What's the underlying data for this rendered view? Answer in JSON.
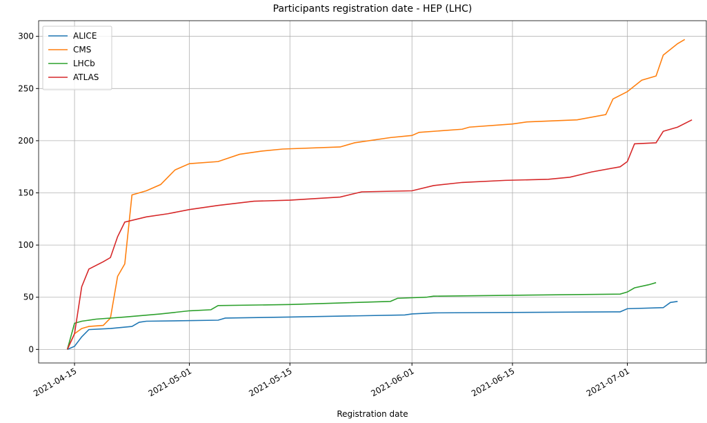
{
  "chart_data": {
    "type": "line",
    "title": "Participants registration date - HEP (LHC)",
    "x_label": "Registration date",
    "xlim": [
      "2021-04-10",
      "2021-07-12"
    ],
    "ylim": [
      -13,
      315
    ],
    "xticks": [
      "2021-04-15",
      "2021-05-01",
      "2021-05-15",
      "2021-06-01",
      "2021-06-15",
      "2021-07-01"
    ],
    "yticks": [
      0,
      50,
      100,
      150,
      200,
      250,
      300
    ],
    "grid": true,
    "legend": "upper left",
    "series": [
      {
        "name": "ALICE",
        "color": "#1f77b4",
        "x": [
          "2021-04-14",
          "2021-04-15",
          "2021-04-16",
          "2021-04-17",
          "2021-04-20",
          "2021-04-23",
          "2021-04-24",
          "2021-04-25",
          "2021-05-05",
          "2021-05-06",
          "2021-05-15",
          "2021-05-31",
          "2021-06-01",
          "2021-06-04",
          "2021-06-30",
          "2021-07-01",
          "2021-07-06",
          "2021-07-07",
          "2021-07-08"
        ],
        "values": [
          0,
          3,
          12,
          19,
          20,
          22,
          26,
          27,
          28,
          30,
          31,
          33,
          34,
          35,
          36,
          39,
          40,
          45,
          46
        ]
      },
      {
        "name": "CMS",
        "color": "#ff7f0e",
        "x": [
          "2021-04-14",
          "2021-04-15",
          "2021-04-16",
          "2021-04-17",
          "2021-04-19",
          "2021-04-20",
          "2021-04-21",
          "2021-04-22",
          "2021-04-23",
          "2021-04-25",
          "2021-04-27",
          "2021-04-29",
          "2021-05-01",
          "2021-05-05",
          "2021-05-08",
          "2021-05-11",
          "2021-05-14",
          "2021-05-22",
          "2021-05-24",
          "2021-05-29",
          "2021-06-01",
          "2021-06-02",
          "2021-06-08",
          "2021-06-09",
          "2021-06-15",
          "2021-06-17",
          "2021-06-24",
          "2021-06-28",
          "2021-06-29",
          "2021-07-01",
          "2021-07-03",
          "2021-07-05",
          "2021-07-06",
          "2021-07-08",
          "2021-07-09"
        ],
        "values": [
          0,
          15,
          20,
          22,
          23,
          30,
          70,
          82,
          148,
          152,
          158,
          172,
          178,
          180,
          187,
          190,
          192,
          194,
          198,
          203,
          205,
          208,
          211,
          213,
          216,
          218,
          220,
          225,
          240,
          247,
          258,
          262,
          282,
          293,
          297
        ]
      },
      {
        "name": "LHCb",
        "color": "#2ca02c",
        "x": [
          "2021-04-14",
          "2021-04-15",
          "2021-04-16",
          "2021-04-18",
          "2021-04-22",
          "2021-04-27",
          "2021-05-01",
          "2021-05-04",
          "2021-05-05",
          "2021-05-15",
          "2021-05-29",
          "2021-05-30",
          "2021-06-03",
          "2021-06-04",
          "2021-06-30",
          "2021-07-01",
          "2021-07-02",
          "2021-07-04",
          "2021-07-05"
        ],
        "values": [
          0,
          25,
          27,
          29,
          31,
          34,
          37,
          38,
          42,
          43,
          46,
          49,
          50,
          51,
          53,
          55,
          59,
          62,
          64
        ]
      },
      {
        "name": "ATLAS",
        "color": "#d62728",
        "x": [
          "2021-04-14",
          "2021-04-15",
          "2021-04-16",
          "2021-04-17",
          "2021-04-19",
          "2021-04-20",
          "2021-04-21",
          "2021-04-22",
          "2021-04-25",
          "2021-04-28",
          "2021-05-01",
          "2021-05-05",
          "2021-05-10",
          "2021-05-15",
          "2021-05-22",
          "2021-05-25",
          "2021-06-01",
          "2021-06-04",
          "2021-06-08",
          "2021-06-14",
          "2021-06-20",
          "2021-06-23",
          "2021-06-26",
          "2021-06-30",
          "2021-07-01",
          "2021-07-02",
          "2021-07-05",
          "2021-07-06",
          "2021-07-08",
          "2021-07-10"
        ],
        "values": [
          0,
          15,
          60,
          77,
          84,
          88,
          108,
          122,
          127,
          130,
          134,
          138,
          142,
          143,
          146,
          151,
          152,
          157,
          160,
          162,
          163,
          165,
          170,
          175,
          180,
          197,
          198,
          209,
          213,
          220
        ]
      }
    ]
  }
}
